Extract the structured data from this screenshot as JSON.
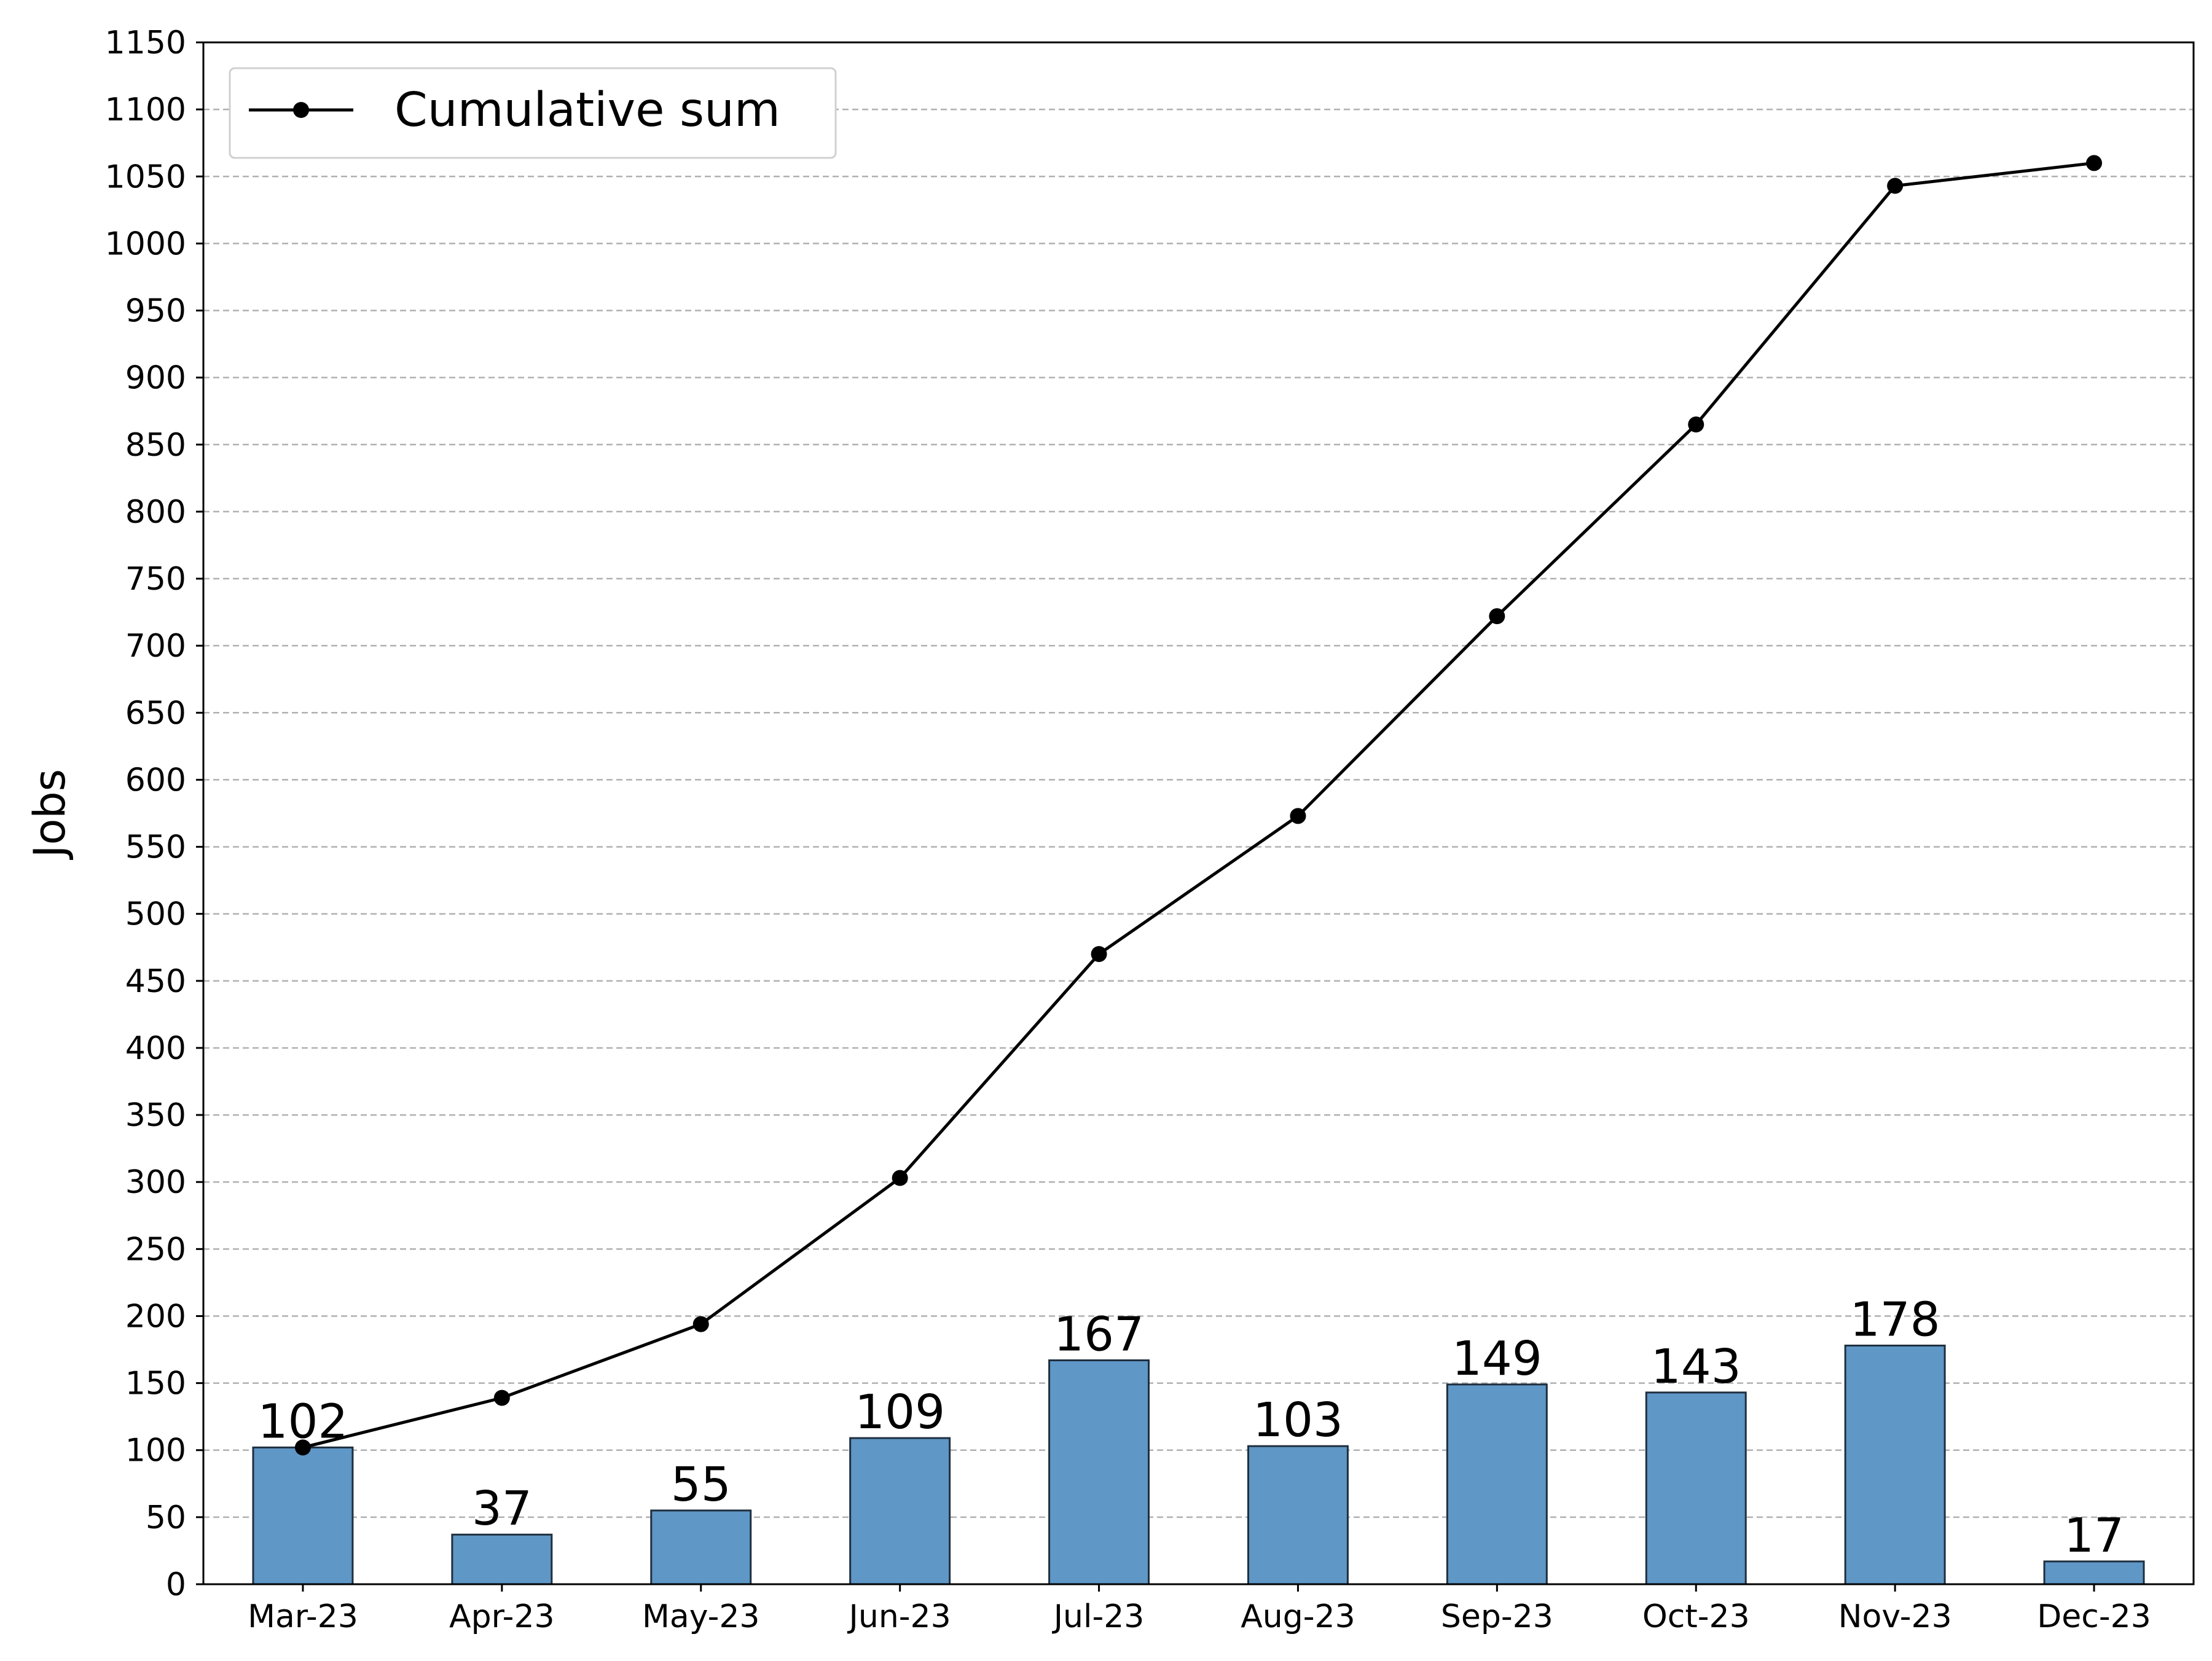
{
  "chart_data": {
    "type": "bar",
    "categories": [
      "Mar-23",
      "Apr-23",
      "May-23",
      "Jun-23",
      "Jul-23",
      "Aug-23",
      "Sep-23",
      "Oct-23",
      "Nov-23",
      "Dec-23"
    ],
    "values": [
      102,
      37,
      55,
      109,
      167,
      103,
      149,
      143,
      178,
      17
    ],
    "series": [
      {
        "type": "line",
        "name": "Cumulative sum",
        "values": [
          102,
          139,
          194,
          303,
          470,
          573,
          722,
          865,
          1043,
          1060
        ]
      }
    ],
    "title": "",
    "xlabel": "",
    "ylabel": "Jobs",
    "ylim": [
      0,
      1150
    ],
    "yticks": [
      0,
      50,
      100,
      150,
      200,
      250,
      300,
      350,
      400,
      450,
      500,
      550,
      600,
      650,
      700,
      750,
      800,
      850,
      900,
      950,
      1000,
      1050,
      1100,
      1150
    ],
    "grid": "horizontal dashed",
    "legend": "top-left",
    "colors": {
      "bar_fill": "#5f97c6",
      "bar_edge": "#1f2f3f",
      "line": "#000000",
      "grid": "#b0b0b0"
    }
  }
}
